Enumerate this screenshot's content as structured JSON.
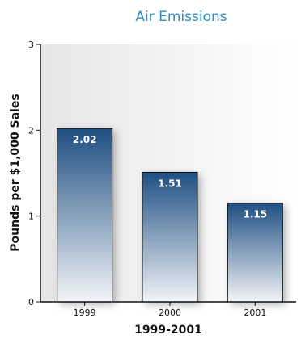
{
  "chart_data": {
    "type": "bar",
    "title": "Air Emissions",
    "xlabel": "1999-2001",
    "ylabel": "Pounds per $1,000 Sales",
    "categories": [
      "1999",
      "2000",
      "2001"
    ],
    "values": [
      2.02,
      1.51,
      1.15
    ],
    "data_labels": [
      "2.02",
      "1.51",
      "1.15"
    ],
    "ylim": [
      0,
      3
    ],
    "yticks": [
      "0",
      "1",
      "2",
      "3"
    ],
    "grid": false,
    "legend": "none",
    "colors": {
      "title": "#2a8fbf",
      "bar_top": "#1f4f82",
      "bar_bottom": "#f2f4f8",
      "bar_outline": "#111111",
      "plot_bg_left": "#e6e6e6",
      "plot_bg_right": "#ffffff"
    }
  }
}
